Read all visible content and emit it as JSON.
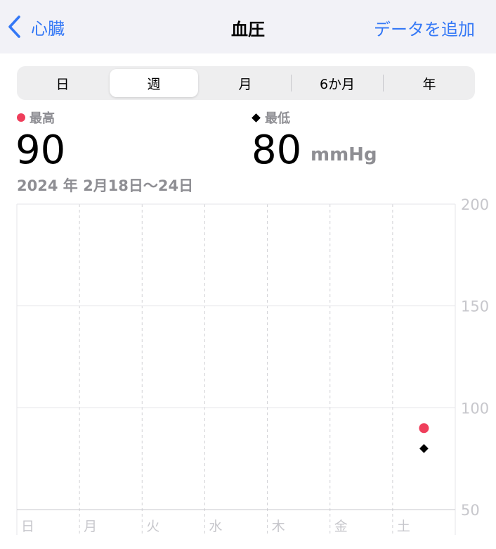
{
  "nav": {
    "back_label": "心臓",
    "title": "血圧",
    "add_label": "データを追加"
  },
  "segments": [
    {
      "label": "日",
      "active": false
    },
    {
      "label": "週",
      "active": true
    },
    {
      "label": "月",
      "active": false
    },
    {
      "label": "6か月",
      "active": false
    },
    {
      "label": "年",
      "active": false
    }
  ],
  "summary": {
    "max_label": "最高",
    "min_label": "最低",
    "max_value": "90",
    "min_value": "80",
    "unit": "mmHg",
    "range": "2024 年 2月18日～24日"
  },
  "colors": {
    "accent": "#3478f6",
    "systolic": "#ef3e5b",
    "diastolic": "#000000"
  },
  "chart_data": {
    "type": "scatter",
    "categories": [
      "日",
      "月",
      "火",
      "水",
      "木",
      "金",
      "土"
    ],
    "ylim": [
      50,
      200
    ],
    "yticks": [
      200,
      150,
      100,
      50
    ],
    "series": [
      {
        "name": "最高",
        "points": [
          {
            "x": "土",
            "y": 90
          }
        ]
      },
      {
        "name": "最低",
        "points": [
          {
            "x": "土",
            "y": 80
          }
        ]
      }
    ]
  }
}
